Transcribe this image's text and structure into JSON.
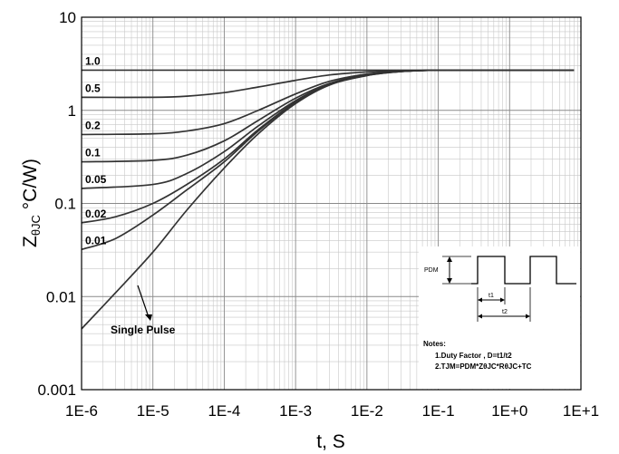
{
  "chart_data": {
    "type": "line",
    "x_scale": "log",
    "y_scale": "log",
    "xlim": [
      1e-06,
      10
    ],
    "ylim": [
      0.001,
      10
    ],
    "grid": true,
    "xlabel": "t, S",
    "ylabel_main": "Z",
    "ylabel_sub": "θJC",
    "ylabel_unit": " °C/W)",
    "x_ticks": [
      "1E-6",
      "1E-5",
      "1E-4",
      "1E-3",
      "1E-2",
      "1E-1",
      "1E+0",
      "1E+1"
    ],
    "y_ticks": [
      "0.001",
      "0.01",
      "0.1",
      "1",
      "10"
    ],
    "series": [
      {
        "name": "1.0",
        "x": [
          1e-06,
          1e-05,
          0.0001,
          0.001,
          0.01,
          0.1,
          1,
          8
        ],
        "y": [
          2.7,
          2.7,
          2.7,
          2.7,
          2.7,
          2.7,
          2.7,
          2.7
        ]
      },
      {
        "name": "0.5",
        "x": [
          1e-06,
          1e-05,
          3e-05,
          0.0001,
          0.0003,
          0.001,
          0.003,
          0.01,
          0.03,
          0.1,
          1,
          8
        ],
        "y": [
          1.38,
          1.38,
          1.42,
          1.55,
          1.78,
          2.1,
          2.4,
          2.58,
          2.66,
          2.7,
          2.7,
          2.7
        ]
      },
      {
        "name": "0.2",
        "x": [
          1e-06,
          1e-05,
          3e-05,
          0.0001,
          0.0003,
          0.001,
          0.003,
          0.01,
          0.03,
          0.1,
          1,
          8
        ],
        "y": [
          0.55,
          0.56,
          0.6,
          0.72,
          1.0,
          1.5,
          2.05,
          2.45,
          2.62,
          2.7,
          2.7,
          2.7
        ]
      },
      {
        "name": "0.1",
        "x": [
          1e-06,
          1e-05,
          3e-05,
          0.0001,
          0.0003,
          0.001,
          0.003,
          0.01,
          0.03,
          0.1,
          1,
          8
        ],
        "y": [
          0.28,
          0.29,
          0.33,
          0.47,
          0.78,
          1.35,
          1.95,
          2.42,
          2.62,
          2.7,
          2.7,
          2.7
        ]
      },
      {
        "name": "0.05",
        "x": [
          1e-06,
          1e-05,
          3e-05,
          0.0001,
          0.0003,
          0.001,
          0.003,
          0.01,
          0.03,
          0.1,
          1,
          8
        ],
        "y": [
          0.145,
          0.16,
          0.21,
          0.36,
          0.68,
          1.27,
          1.92,
          2.4,
          2.62,
          2.7,
          2.7,
          2.7
        ]
      },
      {
        "name": "0.02",
        "x": [
          1e-06,
          3e-06,
          1e-05,
          3e-05,
          0.0001,
          0.0003,
          0.001,
          0.003,
          0.01,
          0.03,
          0.1,
          1,
          8
        ],
        "y": [
          0.062,
          0.072,
          0.1,
          0.16,
          0.3,
          0.62,
          1.23,
          1.9,
          2.38,
          2.61,
          2.7,
          2.7,
          2.7
        ]
      },
      {
        "name": "0.01",
        "x": [
          1e-06,
          3e-06,
          1e-05,
          3e-05,
          0.0001,
          0.0003,
          0.001,
          0.003,
          0.01,
          0.03,
          0.1,
          1,
          8
        ],
        "y": [
          0.032,
          0.042,
          0.075,
          0.14,
          0.28,
          0.6,
          1.21,
          1.89,
          2.37,
          2.61,
          2.7,
          2.7,
          2.7
        ]
      },
      {
        "name": "Single Pulse",
        "x": [
          1e-06,
          3e-06,
          1e-05,
          3e-05,
          0.0001,
          0.0003,
          0.001,
          0.003,
          0.01,
          0.03,
          0.1,
          1,
          8
        ],
        "y": [
          0.0045,
          0.011,
          0.03,
          0.085,
          0.24,
          0.56,
          1.18,
          1.87,
          2.36,
          2.61,
          2.7,
          2.7,
          2.7
        ]
      }
    ],
    "annotation": "Single Pulse",
    "inset": {
      "pdm_label": "PDM",
      "t1_label": "t1",
      "t2_label": "t2",
      "notes_title": "Notes:",
      "note_1": "1.Duty Factor , D=t1/t2",
      "note_2": "2.TJM=PDM*ZθJC*RθJC+TC"
    }
  }
}
